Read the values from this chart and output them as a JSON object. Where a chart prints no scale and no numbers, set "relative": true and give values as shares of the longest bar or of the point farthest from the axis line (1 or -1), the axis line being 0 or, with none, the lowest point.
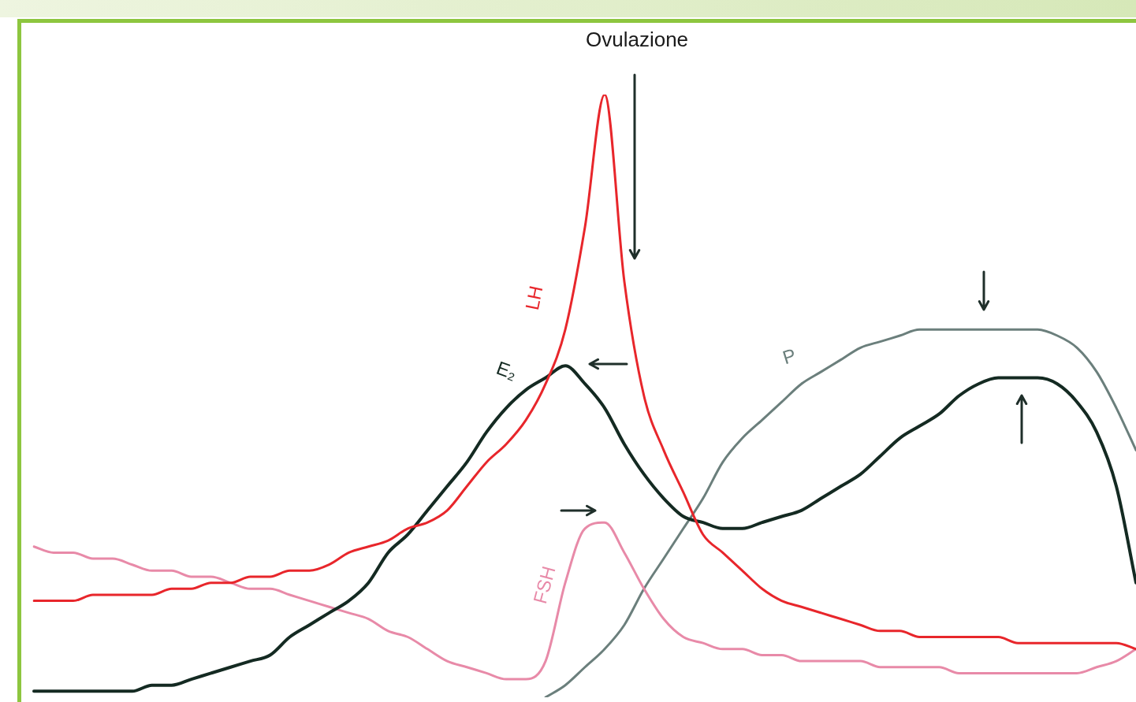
{
  "chart_data": {
    "type": "line",
    "relative": true,
    "categories": [
      null,
      null,
      null,
      null,
      null,
      null,
      null,
      null,
      null,
      null,
      null,
      null,
      null,
      null,
      null,
      null,
      null,
      null,
      null,
      null,
      null,
      null,
      null,
      null,
      null,
      null,
      null,
      null,
      null,
      null,
      null,
      null,
      null,
      null,
      null,
      null,
      null,
      null,
      null,
      null,
      null,
      null,
      null,
      null,
      null,
      null,
      null,
      null,
      null,
      null,
      null,
      null,
      null,
      null,
      null,
      null,
      null
    ],
    "series": [
      {
        "name": "LH",
        "color": "#e8262b",
        "values": [
          0.16,
          0.16,
          0.16,
          0.17,
          0.17,
          0.17,
          0.17,
          0.18,
          0.18,
          0.19,
          0.19,
          0.2,
          0.2,
          0.21,
          0.21,
          0.22,
          0.24,
          0.25,
          0.26,
          0.28,
          0.29,
          0.31,
          0.35,
          0.39,
          0.42,
          0.46,
          0.52,
          0.61,
          0.78,
          1,
          0.69,
          0.5,
          0.41,
          0.34,
          0.27,
          0.24,
          0.21,
          0.18,
          0.16,
          0.15,
          0.14,
          0.13,
          0.12,
          0.11,
          0.11,
          0.1,
          0.1,
          0.1,
          0.1,
          0.1,
          0.09,
          0.09,
          0.09,
          0.09,
          0.09,
          0.09,
          0.08
        ]
      },
      {
        "name": "E₂",
        "color": "#142a22",
        "values": [
          0.01,
          0.01,
          0.01,
          0.01,
          0.01,
          0.01,
          0.02,
          0.02,
          0.03,
          0.04,
          0.05,
          0.06,
          0.07,
          0.1,
          0.12,
          0.14,
          0.16,
          0.19,
          0.24,
          0.27,
          0.31,
          0.35,
          0.39,
          0.44,
          0.48,
          0.51,
          0.53,
          0.55,
          0.52,
          0.48,
          0.42,
          0.37,
          0.33,
          0.3,
          0.29,
          0.28,
          0.28,
          0.29,
          0.3,
          0.31,
          0.33,
          0.35,
          0.37,
          0.4,
          0.43,
          0.45,
          0.47,
          0.5,
          0.52,
          0.53,
          0.53,
          0.53,
          0.52,
          0.49,
          0.44,
          0.35,
          0.19
        ]
      },
      {
        "name": "FSH",
        "color": "#e88aa8",
        "values": [
          0.25,
          0.24,
          0.24,
          0.23,
          0.23,
          0.22,
          0.21,
          0.21,
          0.2,
          0.2,
          0.19,
          0.18,
          0.18,
          0.17,
          0.16,
          0.15,
          0.14,
          0.13,
          0.11,
          0.1,
          0.08,
          0.06,
          0.05,
          0.04,
          0.03,
          0.03,
          0.06,
          0.19,
          0.28,
          0.29,
          0.24,
          0.18,
          0.13,
          0.1,
          0.09,
          0.08,
          0.08,
          0.07,
          0.07,
          0.06,
          0.06,
          0.06,
          0.06,
          0.05,
          0.05,
          0.05,
          0.05,
          0.04,
          0.04,
          0.04,
          0.04,
          0.04,
          0.04,
          0.04,
          0.05,
          0.06,
          0.08
        ]
      },
      {
        "name": "P",
        "color": "#6b7f7c",
        "values": [
          null,
          null,
          null,
          null,
          null,
          null,
          null,
          null,
          null,
          null,
          null,
          null,
          null,
          null,
          null,
          null,
          null,
          null,
          null,
          null,
          null,
          null,
          null,
          null,
          null,
          null,
          0,
          0.02,
          0.05,
          0.08,
          0.12,
          0.18,
          0.23,
          0.28,
          0.33,
          0.39,
          0.43,
          0.46,
          0.49,
          0.52,
          0.54,
          0.56,
          0.58,
          0.59,
          0.6,
          0.61,
          0.61,
          0.61,
          0.61,
          0.61,
          0.61,
          0.61,
          0.6,
          0.58,
          0.54,
          0.48,
          0.41
        ]
      }
    ],
    "annotations": [
      "Ovulazione"
    ],
    "legend": false,
    "marker": "none",
    "line_style": "solid"
  }
}
